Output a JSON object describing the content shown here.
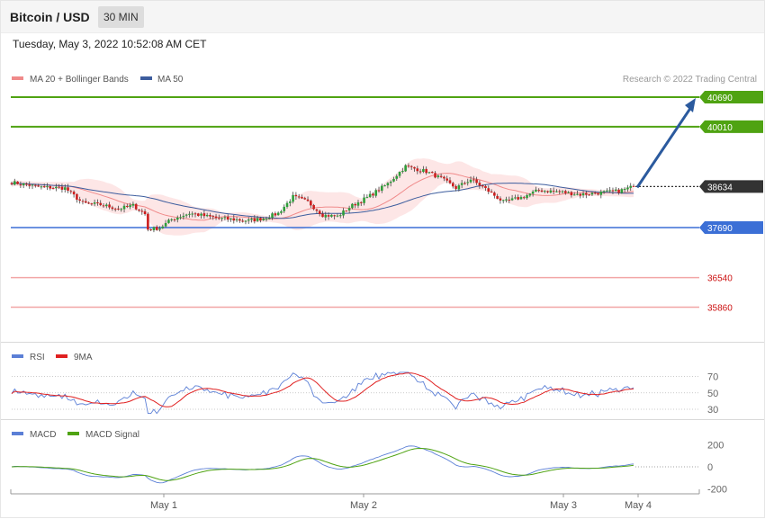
{
  "header": {
    "title": "Bitcoin / USD",
    "timeframe": "30 MIN"
  },
  "datetime": "Tuesday, May 3, 2022 10:52:08 AM CET",
  "legend": {
    "price_ma20": "MA 20 + Bollinger Bands",
    "price_ma50": "MA 50",
    "credit": "Research © 2022 Trading Central",
    "rsi": "RSI",
    "rsi_ma": "9MA",
    "macd": "MACD",
    "macd_signal": "MACD Signal"
  },
  "colors": {
    "up": "#2e9e3a",
    "down": "#cc1f1f",
    "ma20": "#f08a8a",
    "band_fill": "#fde3e3",
    "ma50": "#3d5d9e",
    "resistance": "#4fa312",
    "support": "#3b6fd6",
    "support2": "#f2a6a6",
    "support2_text": "#cc1111",
    "current": "#333333",
    "rsi": "#5b7fd6",
    "rsi_ma": "#e02020",
    "macd": "#5b7fd6",
    "macd_signal": "#4fa312",
    "arrow": "#2b5a9e"
  },
  "chart_data": [
    {
      "type": "candlestick",
      "panel": "price",
      "x_tick_labels": [
        "May 1",
        "May 2",
        "May 3",
        "May 4"
      ],
      "ylim": [
        35800,
        40900
      ],
      "levels": [
        {
          "value": 40690,
          "label": "40690",
          "kind": "resistance"
        },
        {
          "value": 40010,
          "label": "40010",
          "kind": "resistance"
        },
        {
          "value": 38634,
          "label": "38634",
          "kind": "current"
        },
        {
          "value": 37690,
          "label": "37690",
          "kind": "support"
        },
        {
          "value": 36540,
          "label": "36540",
          "kind": "support2"
        },
        {
          "value": 35860,
          "label": "35860",
          "kind": "support2"
        }
      ],
      "forecast_target": 40690,
      "close_anchors": [
        [
          0,
          38730
        ],
        [
          10,
          38620
        ],
        [
          18,
          38600
        ],
        [
          24,
          38250
        ],
        [
          30,
          38220
        ],
        [
          36,
          38120
        ],
        [
          41,
          38200
        ],
        [
          45,
          38000
        ],
        [
          46,
          37650
        ],
        [
          50,
          37680
        ],
        [
          54,
          37880
        ],
        [
          60,
          38020
        ],
        [
          70,
          37900
        ],
        [
          80,
          37850
        ],
        [
          85,
          37900
        ],
        [
          90,
          38020
        ],
        [
          95,
          38400
        ],
        [
          100,
          38280
        ],
        [
          105,
          37980
        ],
        [
          110,
          37950
        ],
        [
          115,
          38200
        ],
        [
          120,
          38380
        ],
        [
          127,
          38700
        ],
        [
          133,
          39100
        ],
        [
          140,
          38980
        ],
        [
          145,
          38820
        ],
        [
          150,
          38600
        ],
        [
          155,
          38800
        ],
        [
          160,
          38580
        ],
        [
          166,
          38280
        ],
        [
          172,
          38380
        ],
        [
          178,
          38550
        ],
        [
          184,
          38520
        ],
        [
          192,
          38450
        ],
        [
          200,
          38500
        ],
        [
          205,
          38530
        ],
        [
          210,
          38634
        ]
      ]
    },
    {
      "type": "line",
      "panel": "rsi",
      "series": [
        {
          "name": "RSI"
        },
        {
          "name": "9MA"
        }
      ],
      "y_tick_labels": [
        "70",
        "50",
        "30"
      ],
      "ylim": [
        20,
        80
      ]
    },
    {
      "type": "line",
      "panel": "macd",
      "series": [
        {
          "name": "MACD"
        },
        {
          "name": "MACD Signal"
        }
      ],
      "y_tick_labels": [
        "200",
        "0",
        "-200"
      ],
      "ylim": [
        -260,
        260
      ]
    }
  ]
}
